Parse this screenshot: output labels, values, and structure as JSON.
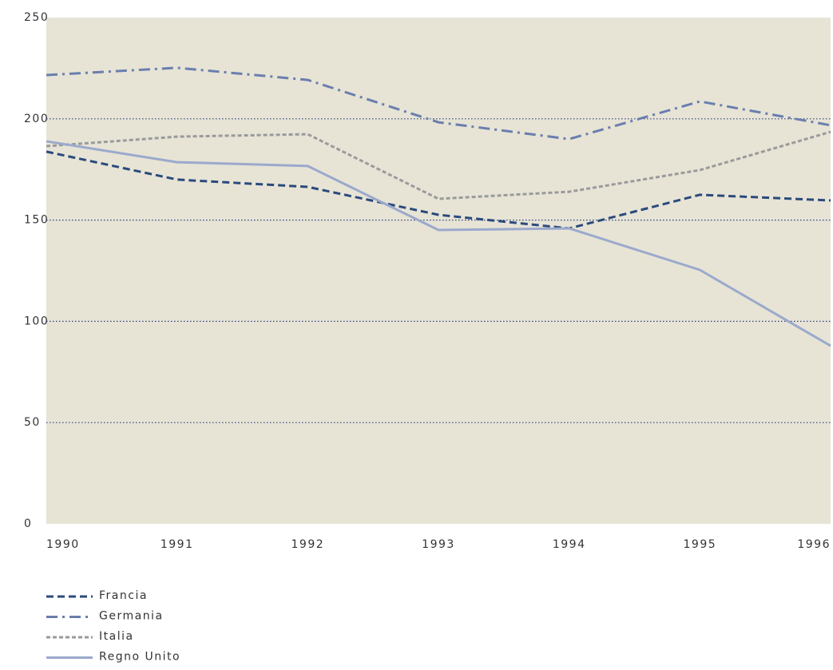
{
  "chart_data": {
    "type": "line",
    "categories": [
      "1990",
      "1991",
      "1992",
      "1993",
      "1994",
      "1995",
      "1996"
    ],
    "series": [
      {
        "name": "Francia",
        "color": "#2b4a7c",
        "values": [
          183.8,
          170,
          166.4,
          152.6,
          145.9,
          162.5,
          159.7
        ]
      },
      {
        "name": "Germania",
        "color": "#6a7eae",
        "values": [
          221.6,
          225.2,
          219.2,
          198.3,
          190,
          208.6,
          196.8
        ]
      },
      {
        "name": "Italia",
        "color": "#9a9a9a",
        "values": [
          186.5,
          191.2,
          192.4,
          160.5,
          164,
          174.7,
          193.6
        ]
      },
      {
        "name": "Regno Unito",
        "color": "#9ba9cc",
        "values": [
          188.9,
          178.6,
          176.7,
          145.1,
          145.9,
          125.4,
          87.9
        ]
      }
    ],
    "ylim": [
      0,
      250
    ],
    "yticks": [
      0,
      50,
      100,
      150,
      200,
      250
    ],
    "grid": true
  }
}
